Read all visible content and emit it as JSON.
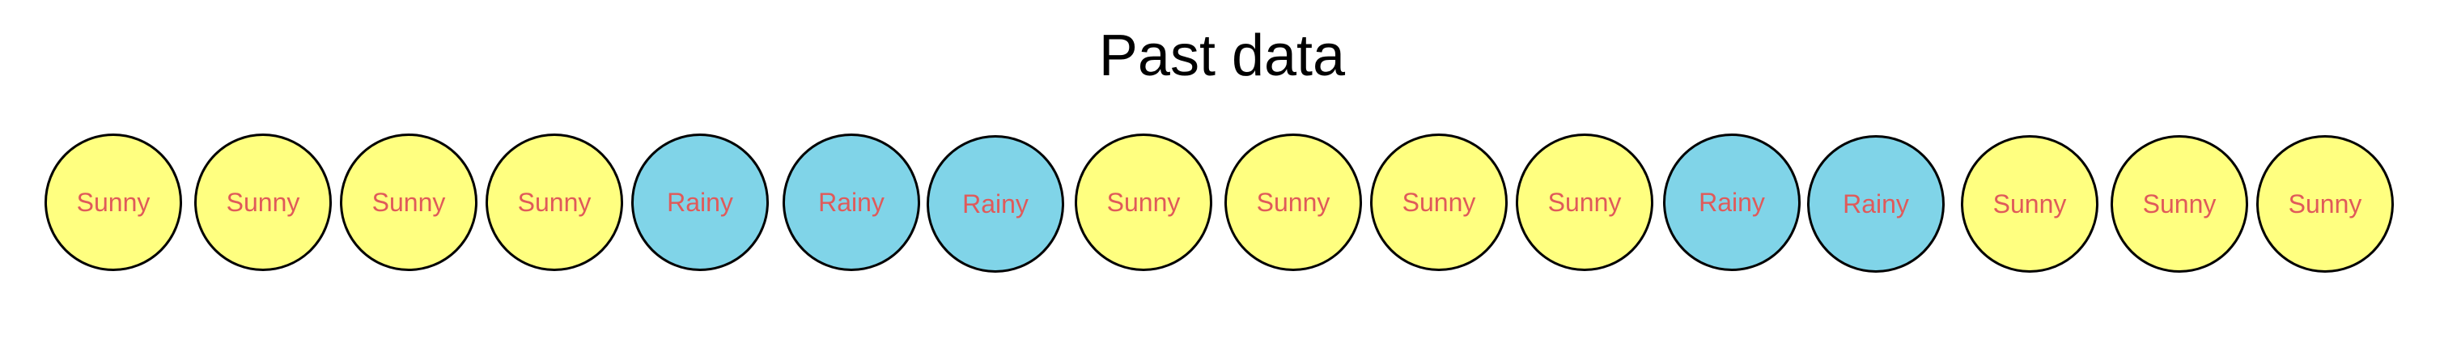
{
  "title": "Past data",
  "colors": {
    "sunny_fill": "#ffff80",
    "rainy_fill": "#80d4e8",
    "label_text": "#e05a5a",
    "outline": "#000000"
  },
  "days": [
    {
      "label": "Sunny",
      "state": "sunny"
    },
    {
      "label": "Sunny",
      "state": "sunny"
    },
    {
      "label": "Sunny",
      "state": "sunny"
    },
    {
      "label": "Sunny",
      "state": "sunny"
    },
    {
      "label": "Rainy",
      "state": "rainy"
    },
    {
      "label": "Rainy",
      "state": "rainy"
    },
    {
      "label": "Rainy",
      "state": "rainy"
    },
    {
      "label": "Sunny",
      "state": "sunny"
    },
    {
      "label": "Sunny",
      "state": "sunny"
    },
    {
      "label": "Sunny",
      "state": "sunny"
    },
    {
      "label": "Sunny",
      "state": "sunny"
    },
    {
      "label": "Rainy",
      "state": "rainy"
    },
    {
      "label": "Rainy",
      "state": "rainy"
    },
    {
      "label": "Sunny",
      "state": "sunny"
    },
    {
      "label": "Sunny",
      "state": "sunny"
    },
    {
      "label": "Sunny",
      "state": "sunny"
    }
  ]
}
